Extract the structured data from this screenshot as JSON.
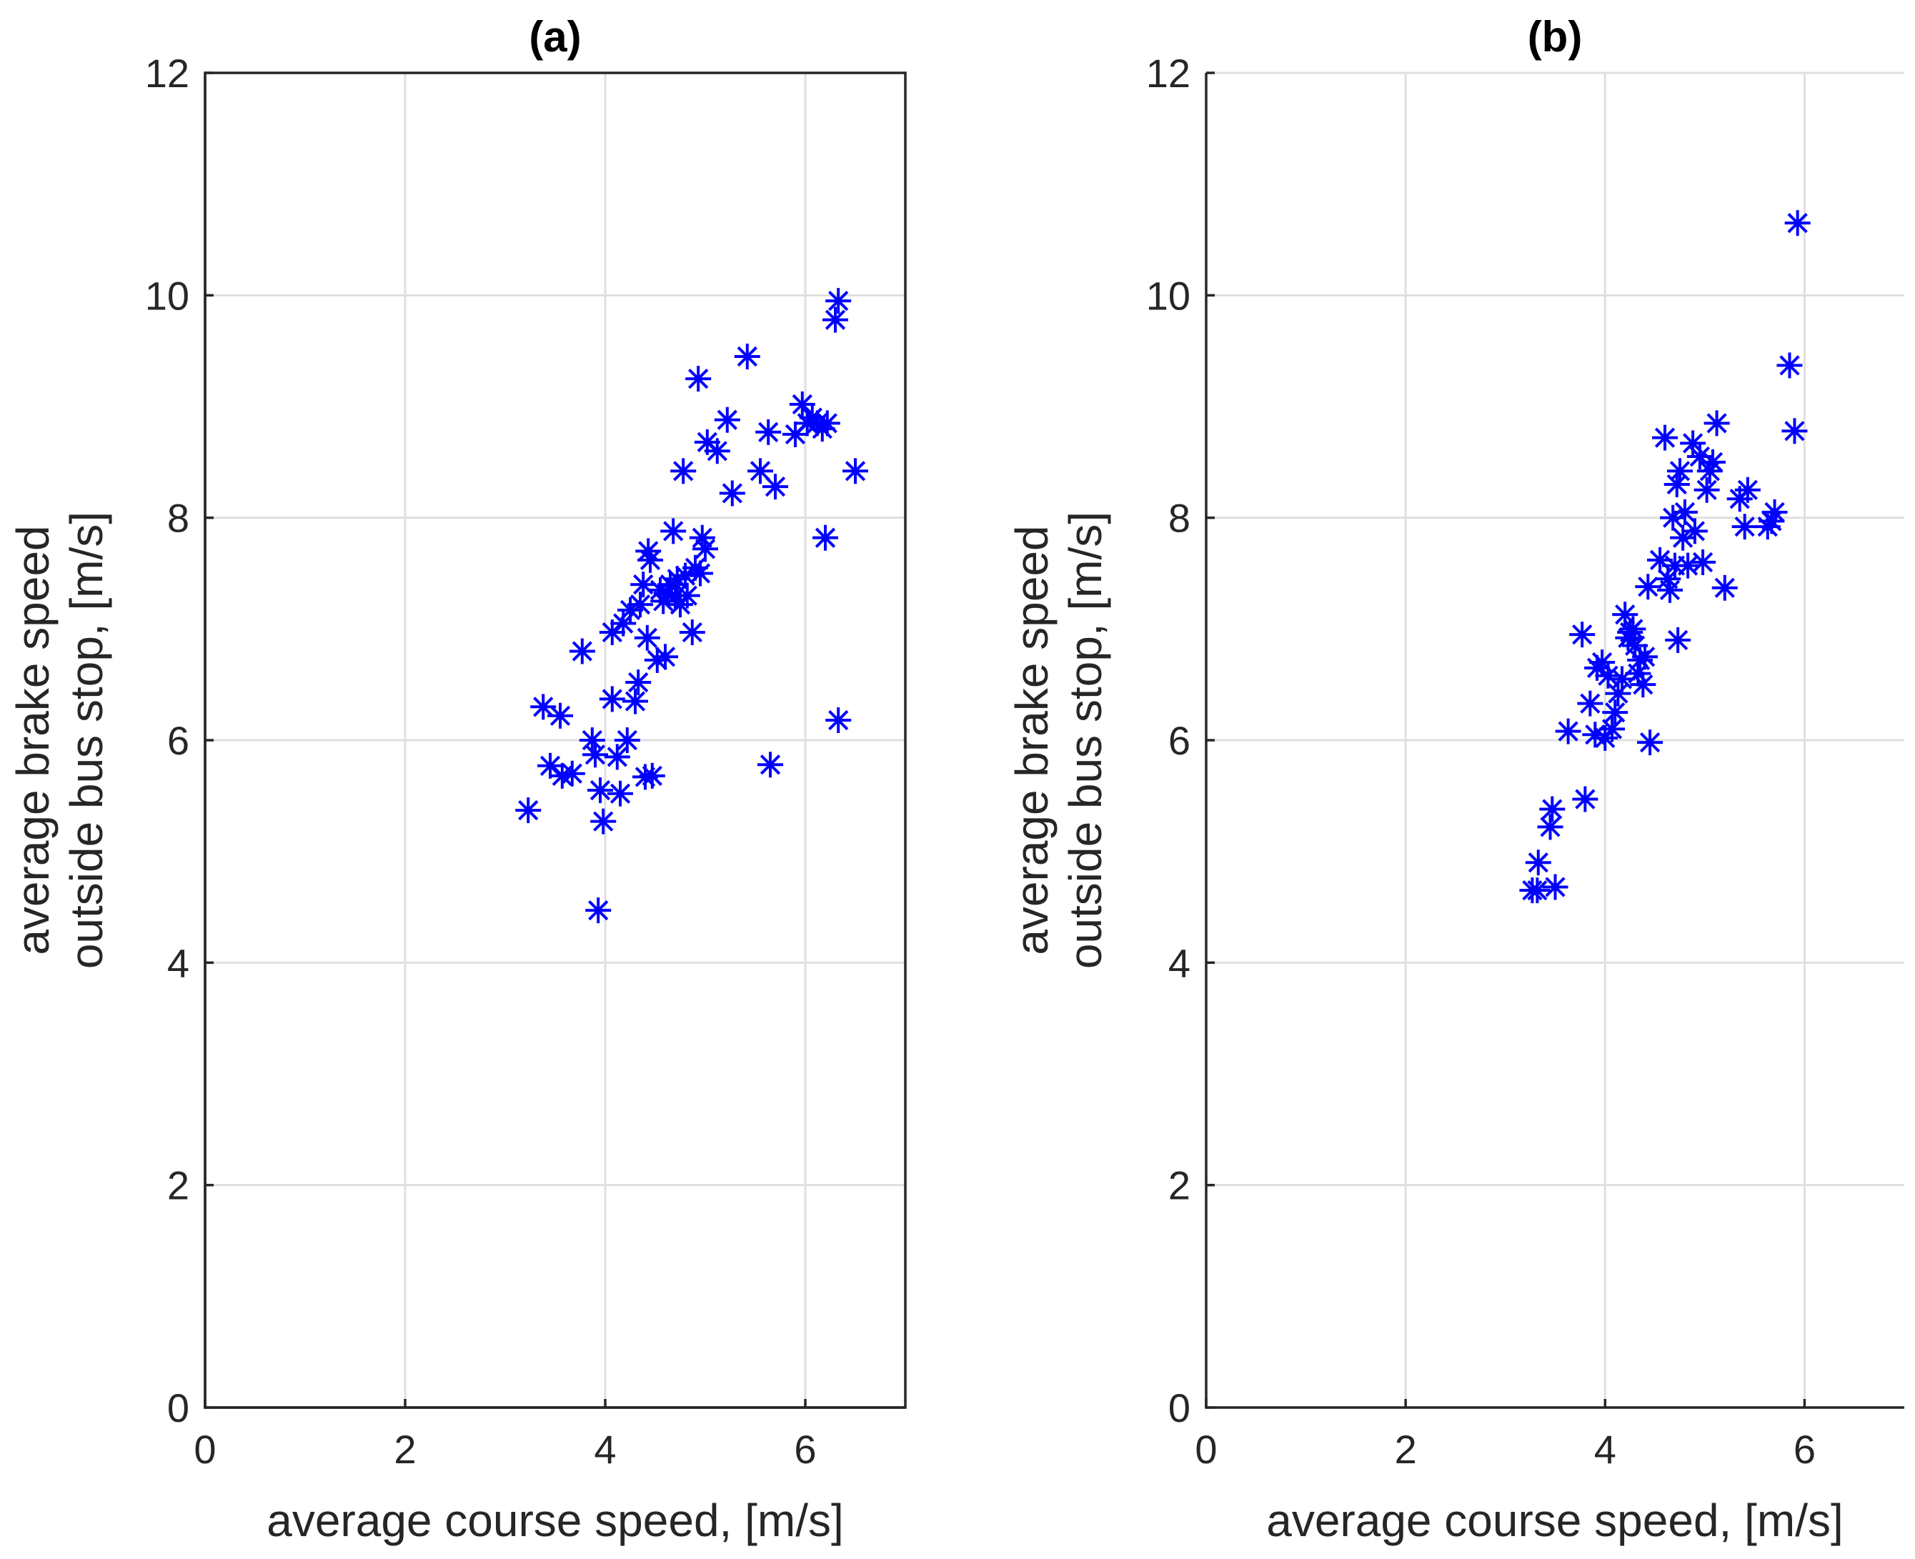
{
  "colors": {
    "marker": "#0000ff",
    "axis": "#262626",
    "grid": "#dfdfdf"
  },
  "chart_data": [
    {
      "type": "scatter",
      "title": "(a)",
      "xlabel": "average course speed, [m/s]",
      "ylabel": [
        "average brake speed",
        "outside bus stop, [m/s]"
      ],
      "xlim": [
        0,
        7
      ],
      "ylim": [
        0,
        12
      ],
      "xticks": [
        0,
        2,
        4,
        6
      ],
      "yticks": [
        0,
        2,
        4,
        6,
        8,
        10,
        12
      ],
      "grid": true,
      "marker": "asterisk",
      "points": [
        [
          3.23,
          5.37
        ],
        [
          3.38,
          6.3
        ],
        [
          3.45,
          5.77
        ],
        [
          3.55,
          6.22
        ],
        [
          3.57,
          5.68
        ],
        [
          3.67,
          5.7
        ],
        [
          3.77,
          6.8
        ],
        [
          3.87,
          6.0
        ],
        [
          3.9,
          5.87
        ],
        [
          3.93,
          4.47
        ],
        [
          3.95,
          5.55
        ],
        [
          3.98,
          5.27
        ],
        [
          4.07,
          6.37
        ],
        [
          4.07,
          6.97
        ],
        [
          4.12,
          5.85
        ],
        [
          4.15,
          5.52
        ],
        [
          4.18,
          7.05
        ],
        [
          4.22,
          6.0
        ],
        [
          4.25,
          7.17
        ],
        [
          4.3,
          6.35
        ],
        [
          4.33,
          6.52
        ],
        [
          4.35,
          7.22
        ],
        [
          4.38,
          7.4
        ],
        [
          4.4,
          5.67
        ],
        [
          4.42,
          6.92
        ],
        [
          4.43,
          7.7
        ],
        [
          4.45,
          7.62
        ],
        [
          4.47,
          5.68
        ],
        [
          4.52,
          6.72
        ],
        [
          4.55,
          7.35
        ],
        [
          4.58,
          7.25
        ],
        [
          4.6,
          6.75
        ],
        [
          4.62,
          7.32
        ],
        [
          4.65,
          7.4
        ],
        [
          4.68,
          7.88
        ],
        [
          4.7,
          7.3
        ],
        [
          4.72,
          7.45
        ],
        [
          4.75,
          7.22
        ],
        [
          4.78,
          8.42
        ],
        [
          4.8,
          7.48
        ],
        [
          4.82,
          7.3
        ],
        [
          4.87,
          6.97
        ],
        [
          4.9,
          7.55
        ],
        [
          4.93,
          9.25
        ],
        [
          4.95,
          7.5
        ],
        [
          4.97,
          7.82
        ],
        [
          5.0,
          7.72
        ],
        [
          5.02,
          8.68
        ],
        [
          5.12,
          8.6
        ],
        [
          5.22,
          8.88
        ],
        [
          5.27,
          8.22
        ],
        [
          5.42,
          9.45
        ],
        [
          5.55,
          8.42
        ],
        [
          5.63,
          8.77
        ],
        [
          5.65,
          5.78
        ],
        [
          5.7,
          8.28
        ],
        [
          5.9,
          8.75
        ],
        [
          5.97,
          9.02
        ],
        [
          6.02,
          8.85
        ],
        [
          6.07,
          8.9
        ],
        [
          6.12,
          8.85
        ],
        [
          6.17,
          8.8
        ],
        [
          6.2,
          7.82
        ],
        [
          6.22,
          8.85
        ],
        [
          6.3,
          9.78
        ],
        [
          6.33,
          9.95
        ],
        [
          6.33,
          6.18
        ],
        [
          6.5,
          8.42
        ]
      ]
    },
    {
      "type": "scatter",
      "title": "(b)",
      "xlabel": "average course speed, [m/s]",
      "ylabel": [
        "average brake speed",
        "outside bus stop, [m/s]"
      ],
      "xlim": [
        0,
        7
      ],
      "ylim": [
        0,
        12
      ],
      "xticks": [
        0,
        2,
        4,
        6
      ],
      "yticks": [
        0,
        2,
        4,
        6,
        8,
        10,
        12
      ],
      "grid": true,
      "marker": "asterisk",
      "points": [
        [
          3.27,
          4.65
        ],
        [
          3.32,
          4.65
        ],
        [
          3.33,
          4.9
        ],
        [
          3.45,
          5.22
        ],
        [
          3.47,
          5.38
        ],
        [
          3.5,
          4.68
        ],
        [
          3.63,
          6.08
        ],
        [
          3.77,
          6.95
        ],
        [
          3.8,
          5.47
        ],
        [
          3.85,
          6.33
        ],
        [
          3.9,
          6.05
        ],
        [
          3.92,
          6.65
        ],
        [
          3.97,
          6.7
        ],
        [
          4.0,
          6.02
        ],
        [
          4.03,
          6.58
        ],
        [
          4.07,
          6.1
        ],
        [
          4.1,
          6.25
        ],
        [
          4.13,
          6.42
        ],
        [
          4.17,
          6.55
        ],
        [
          4.2,
          7.13
        ],
        [
          4.23,
          6.92
        ],
        [
          4.25,
          6.97
        ],
        [
          4.28,
          7.0
        ],
        [
          4.3,
          6.85
        ],
        [
          4.33,
          6.6
        ],
        [
          4.35,
          6.72
        ],
        [
          4.38,
          6.5
        ],
        [
          4.4,
          6.75
        ],
        [
          4.43,
          7.38
        ],
        [
          4.45,
          5.98
        ],
        [
          4.55,
          7.62
        ],
        [
          4.6,
          8.72
        ],
        [
          4.63,
          7.45
        ],
        [
          4.65,
          7.35
        ],
        [
          4.68,
          8.0
        ],
        [
          4.7,
          7.57
        ],
        [
          4.72,
          8.3
        ],
        [
          4.73,
          6.9
        ],
        [
          4.75,
          8.42
        ],
        [
          4.78,
          7.82
        ],
        [
          4.8,
          8.05
        ],
        [
          4.83,
          7.57
        ],
        [
          4.88,
          8.67
        ],
        [
          4.9,
          7.88
        ],
        [
          4.95,
          8.55
        ],
        [
          4.98,
          7.6
        ],
        [
          5.02,
          8.25
        ],
        [
          5.05,
          8.42
        ],
        [
          5.08,
          8.5
        ],
        [
          5.12,
          8.85
        ],
        [
          5.2,
          7.37
        ],
        [
          5.35,
          8.17
        ],
        [
          5.4,
          7.92
        ],
        [
          5.43,
          8.25
        ],
        [
          5.63,
          7.92
        ],
        [
          5.67,
          7.97
        ],
        [
          5.7,
          8.05
        ],
        [
          5.85,
          9.37
        ],
        [
          5.9,
          8.78
        ],
        [
          5.93,
          10.65
        ]
      ]
    }
  ]
}
